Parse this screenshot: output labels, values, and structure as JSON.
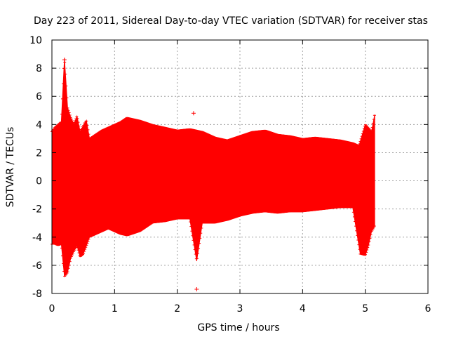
{
  "chart_data": {
    "type": "scatter",
    "title": "Day 223 of 2011, Sidereal Day-to-day VTEC variation (SDTVAR) for receiver stas",
    "xlabel": "GPS time / hours",
    "ylabel": "SDTVAR / TECUs",
    "xlim": [
      0,
      6
    ],
    "ylim": [
      -8,
      10
    ],
    "xticks": [
      "0",
      "1",
      "2",
      "3",
      "4",
      "5",
      "6"
    ],
    "yticks": [
      "-8",
      "-6",
      "-4",
      "-2",
      "0",
      "2",
      "4",
      "6",
      "8",
      "10"
    ],
    "grid": true,
    "color": "#ff0000",
    "series": [
      {
        "name": "",
        "style": "error-bars",
        "envelope_upper": [
          [
            0.0,
            3.5
          ],
          [
            0.05,
            3.8
          ],
          [
            0.1,
            4.0
          ],
          [
            0.15,
            4.2
          ],
          [
            0.2,
            8.7
          ],
          [
            0.25,
            5.2
          ],
          [
            0.3,
            4.5
          ],
          [
            0.35,
            4.0
          ],
          [
            0.4,
            4.6
          ],
          [
            0.45,
            3.5
          ],
          [
            0.5,
            3.9
          ],
          [
            0.55,
            4.3
          ],
          [
            0.6,
            3.0
          ],
          [
            0.7,
            3.3
          ],
          [
            0.8,
            3.6
          ],
          [
            0.9,
            3.8
          ],
          [
            1.0,
            4.0
          ],
          [
            1.1,
            4.2
          ],
          [
            1.2,
            4.5
          ],
          [
            1.4,
            4.3
          ],
          [
            1.6,
            4.0
          ],
          [
            1.8,
            3.8
          ],
          [
            2.0,
            3.6
          ],
          [
            2.2,
            3.7
          ],
          [
            2.4,
            3.5
          ],
          [
            2.6,
            3.1
          ],
          [
            2.8,
            2.9
          ],
          [
            3.0,
            3.2
          ],
          [
            3.2,
            3.5
          ],
          [
            3.4,
            3.6
          ],
          [
            3.6,
            3.3
          ],
          [
            3.8,
            3.2
          ],
          [
            4.0,
            3.0
          ],
          [
            4.2,
            3.1
          ],
          [
            4.4,
            3.0
          ],
          [
            4.6,
            2.9
          ],
          [
            4.8,
            2.7
          ],
          [
            4.9,
            2.5
          ],
          [
            5.0,
            4.0
          ],
          [
            5.1,
            3.5
          ],
          [
            5.15,
            4.7
          ]
        ],
        "envelope_lower": [
          [
            0.0,
            -4.5
          ],
          [
            0.05,
            -4.5
          ],
          [
            0.1,
            -4.6
          ],
          [
            0.15,
            -4.5
          ],
          [
            0.2,
            -6.8
          ],
          [
            0.25,
            -6.5
          ],
          [
            0.3,
            -5.5
          ],
          [
            0.35,
            -5.0
          ],
          [
            0.4,
            -4.6
          ],
          [
            0.45,
            -5.4
          ],
          [
            0.5,
            -5.2
          ],
          [
            0.55,
            -4.6
          ],
          [
            0.6,
            -4.0
          ],
          [
            0.7,
            -3.8
          ],
          [
            0.8,
            -3.6
          ],
          [
            0.9,
            -3.4
          ],
          [
            1.0,
            -3.6
          ],
          [
            1.1,
            -3.8
          ],
          [
            1.2,
            -3.9
          ],
          [
            1.4,
            -3.6
          ],
          [
            1.6,
            -3.0
          ],
          [
            1.8,
            -2.9
          ],
          [
            2.0,
            -2.7
          ],
          [
            2.2,
            -2.7
          ],
          [
            2.31,
            -5.7
          ],
          [
            2.4,
            -3.0
          ],
          [
            2.6,
            -3.0
          ],
          [
            2.8,
            -2.8
          ],
          [
            3.0,
            -2.5
          ],
          [
            3.2,
            -2.3
          ],
          [
            3.4,
            -2.2
          ],
          [
            3.6,
            -2.3
          ],
          [
            3.8,
            -2.2
          ],
          [
            4.0,
            -2.2
          ],
          [
            4.2,
            -2.1
          ],
          [
            4.4,
            -2.0
          ],
          [
            4.6,
            -1.9
          ],
          [
            4.8,
            -1.9
          ],
          [
            4.92,
            -5.2
          ],
          [
            5.0,
            -5.3
          ],
          [
            5.05,
            -4.6
          ],
          [
            5.1,
            -3.6
          ],
          [
            5.15,
            -3.2
          ]
        ],
        "outliers": [
          [
            2.26,
            4.8
          ],
          [
            2.31,
            -7.7
          ],
          [
            0.2,
            8.6
          ]
        ]
      }
    ]
  }
}
